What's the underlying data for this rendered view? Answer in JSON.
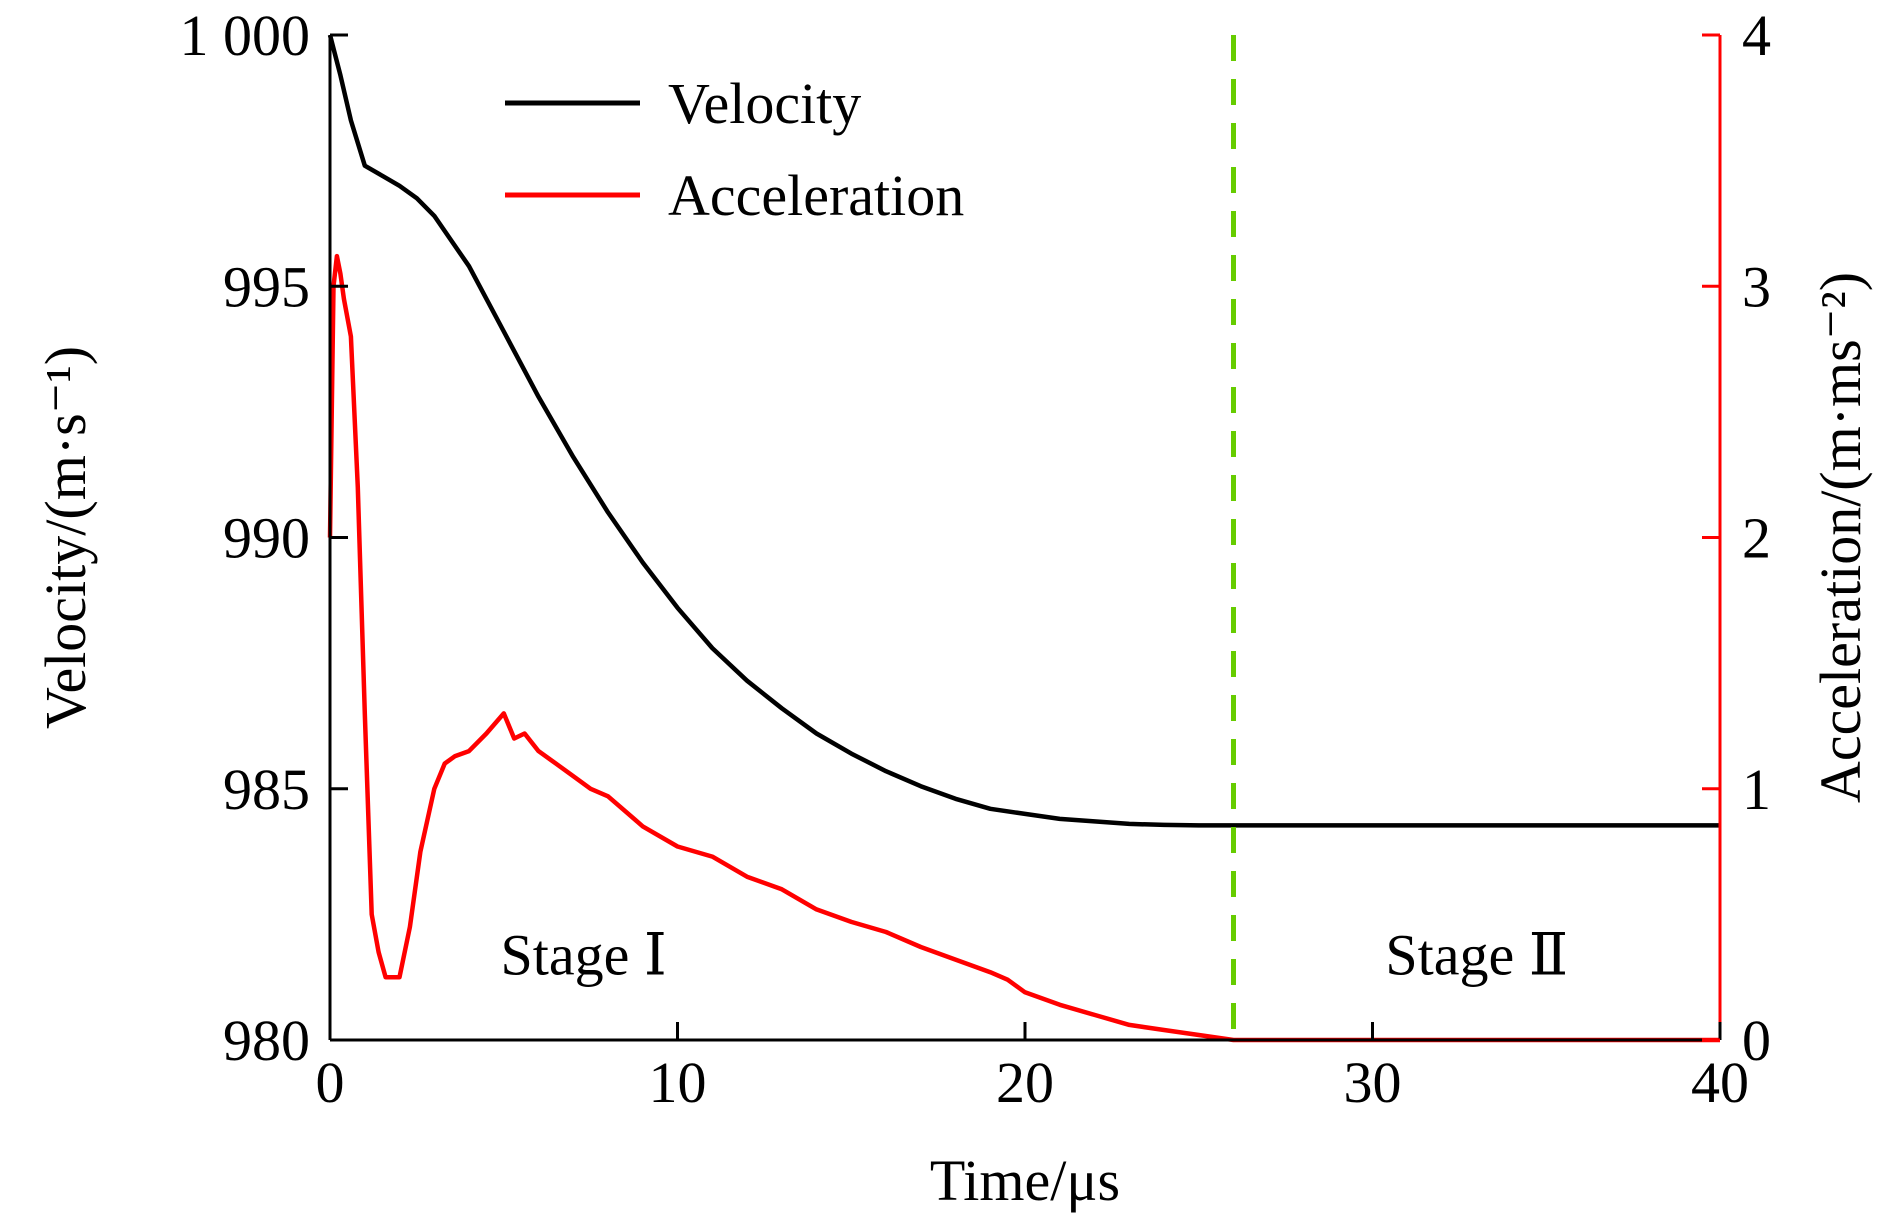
{
  "chart_data": {
    "type": "line",
    "title": "",
    "xlabel": "Time/μs",
    "ylabel": "Velocity/(m·s⁻¹)",
    "y2label": "Acceleration/(m·ms⁻²)",
    "xlim": [
      0,
      40
    ],
    "ylim": [
      980,
      1000
    ],
    "y2lim": [
      0,
      4
    ],
    "x_ticks": [
      0,
      10,
      20,
      30,
      40
    ],
    "x_tick_labels": [
      "0",
      "10",
      "20",
      "30",
      "40"
    ],
    "y_ticks": [
      980,
      985,
      990,
      995,
      1000
    ],
    "y_tick_labels": [
      "980",
      "985",
      "990",
      "995",
      "1 000"
    ],
    "y2_ticks": [
      0,
      1,
      2,
      3,
      4
    ],
    "y2_tick_labels": [
      "0",
      "1",
      "2",
      "3",
      "4"
    ],
    "grid": false,
    "legend": {
      "placement": "top-left",
      "entries": [
        "Velocity",
        "Acceleration"
      ]
    },
    "series": [
      {
        "name": "Velocity",
        "axis": "left",
        "color": "#000000",
        "x": [
          0,
          0.3,
          0.6,
          1.0,
          1.5,
          2.0,
          2.5,
          3.0,
          3.5,
          4.0,
          5.0,
          6.0,
          7.0,
          8.0,
          9.0,
          10.0,
          11.0,
          12.0,
          13.0,
          14.0,
          15.0,
          16.0,
          17.0,
          18.0,
          19.0,
          20.0,
          21.0,
          22.0,
          23.0,
          24.0,
          25.0,
          26.0,
          30.0,
          35.0,
          40.0
        ],
        "values": [
          1000.0,
          999.2,
          998.3,
          997.4,
          997.2,
          997.0,
          996.75,
          996.4,
          995.9,
          995.4,
          994.1,
          992.8,
          991.6,
          990.5,
          989.5,
          988.6,
          987.8,
          987.15,
          986.6,
          986.1,
          985.7,
          985.35,
          985.05,
          984.8,
          984.6,
          984.5,
          984.4,
          984.35,
          984.3,
          984.28,
          984.27,
          984.27,
          984.27,
          984.27,
          984.27
        ]
      },
      {
        "name": "Acceleration",
        "axis": "right",
        "color": "#ff0000",
        "x": [
          0,
          0.1,
          0.2,
          0.3,
          0.4,
          0.6,
          0.8,
          1.0,
          1.2,
          1.4,
          1.6,
          2.0,
          2.3,
          2.6,
          3.0,
          3.3,
          3.6,
          4.0,
          4.5,
          5.0,
          5.3,
          5.6,
          6.0,
          6.5,
          7.0,
          7.5,
          8.0,
          9.0,
          10.0,
          11.0,
          12.0,
          13.0,
          14.0,
          15.0,
          16.0,
          17.0,
          18.0,
          19.0,
          19.5,
          20.0,
          21.0,
          22.0,
          23.0,
          24.0,
          25.0,
          26.0,
          30.0,
          35.0,
          40.0
        ],
        "values": [
          2.0,
          3.0,
          3.12,
          3.05,
          2.95,
          2.8,
          2.2,
          1.3,
          0.5,
          0.35,
          0.25,
          0.25,
          0.45,
          0.75,
          1.0,
          1.1,
          1.13,
          1.15,
          1.22,
          1.3,
          1.2,
          1.22,
          1.15,
          1.1,
          1.05,
          1.0,
          0.97,
          0.85,
          0.77,
          0.73,
          0.65,
          0.6,
          0.52,
          0.47,
          0.43,
          0.37,
          0.32,
          0.27,
          0.24,
          0.19,
          0.14,
          0.1,
          0.06,
          0.04,
          0.02,
          0.0,
          0.0,
          0.0,
          0.0
        ]
      }
    ],
    "annotations": [
      {
        "type": "vline",
        "x": 26,
        "color": "#66cc00",
        "style": "dashed"
      },
      {
        "type": "text",
        "text": "Stage Ⅰ",
        "x": 7.3,
        "y": 981.3
      },
      {
        "type": "text",
        "text": "Stage Ⅱ",
        "x": 33.0,
        "y": 981.3
      }
    ],
    "colors": {
      "left_axis": "#000000",
      "right_axis": "#ff0000",
      "divider": "#66cc00"
    }
  }
}
